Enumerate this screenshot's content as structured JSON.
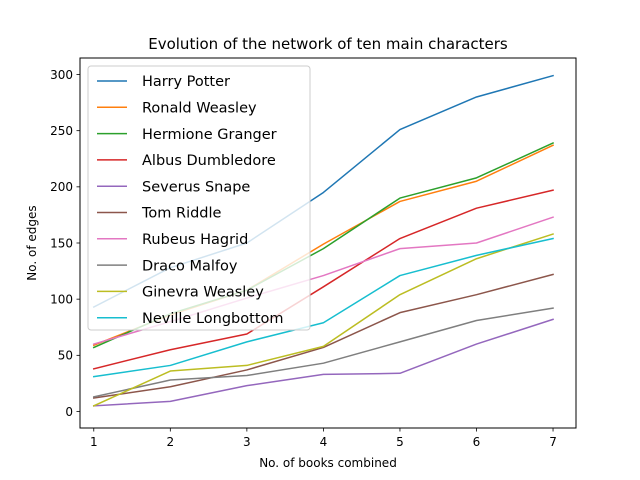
{
  "chart_data": {
    "type": "line",
    "title": "Evolution of the network of ten main characters",
    "xlabel": "No. of books combined",
    "ylabel": "No. of edges",
    "x": [
      1,
      2,
      3,
      4,
      5,
      6,
      7
    ],
    "xlim": [
      0.82,
      7.3
    ],
    "ylim": [
      -14.7,
      314.7
    ],
    "xticks": [
      1,
      2,
      3,
      4,
      5,
      6,
      7
    ],
    "yticks": [
      0,
      50,
      100,
      150,
      200,
      250,
      300
    ],
    "grid": false,
    "legend_position": "top-left",
    "series": [
      {
        "name": "Harry Potter",
        "color": "#1f77b4",
        "values": [
          93,
          128,
          150,
          195,
          251,
          280,
          299
        ]
      },
      {
        "name": "Ronald Weasley",
        "color": "#ff7f0e",
        "values": [
          59,
          86,
          108,
          149,
          187,
          205,
          237
        ]
      },
      {
        "name": "Hermione Granger",
        "color": "#2ca02c",
        "values": [
          57,
          87,
          108,
          145,
          190,
          208,
          239
        ]
      },
      {
        "name": "Albus Dumbledore",
        "color": "#d62728",
        "values": [
          38,
          55,
          69,
          111,
          154,
          181,
          197
        ]
      },
      {
        "name": "Severus Snape",
        "color": "#9467bd",
        "values": [
          5,
          9,
          23,
          33,
          34,
          60,
          82
        ]
      },
      {
        "name": "Tom Riddle",
        "color": "#8c564b",
        "values": [
          12,
          22,
          37,
          57,
          88,
          104,
          122
        ]
      },
      {
        "name": "Rubeus Hagrid",
        "color": "#e377c2",
        "values": [
          60,
          80,
          101,
          121,
          145,
          150,
          173
        ]
      },
      {
        "name": "Draco Malfoy",
        "color": "#7f7f7f",
        "values": [
          13,
          28,
          32,
          43,
          62,
          81,
          92
        ]
      },
      {
        "name": "Ginevra Weasley",
        "color": "#bcbd22",
        "values": [
          5,
          36,
          41,
          58,
          104,
          136,
          158
        ]
      },
      {
        "name": "Neville Longbottom",
        "color": "#17becf",
        "values": [
          31,
          41,
          62,
          79,
          121,
          139,
          154
        ]
      }
    ]
  }
}
